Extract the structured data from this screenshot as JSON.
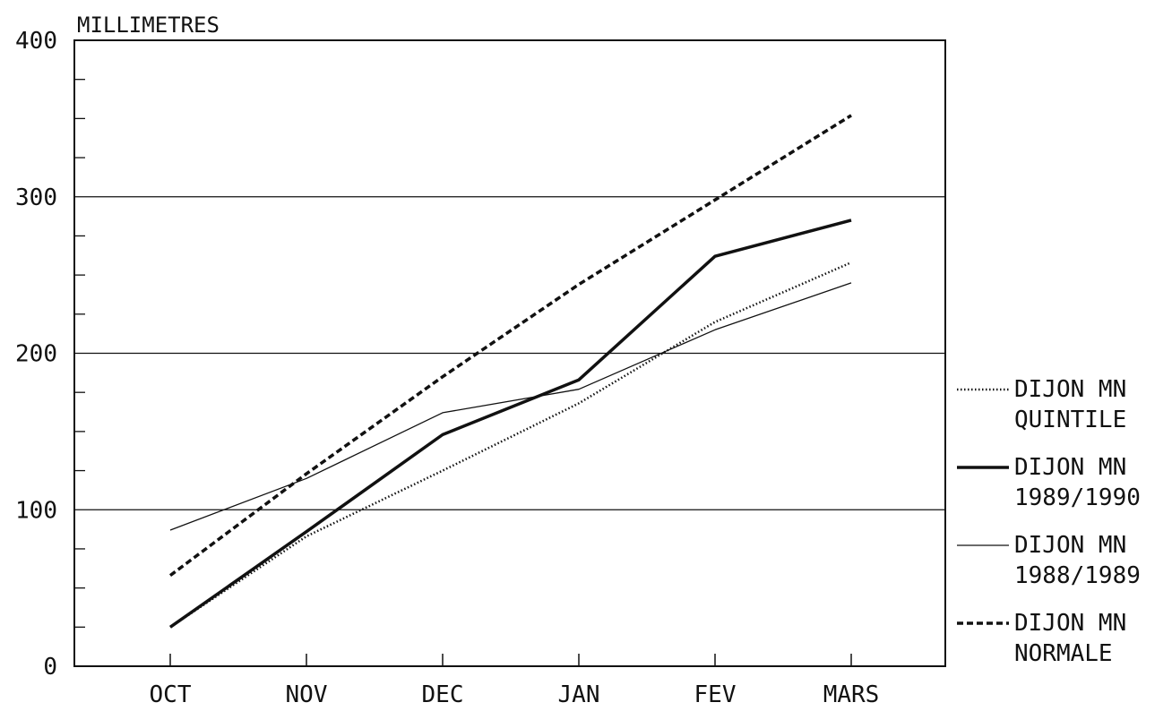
{
  "chart_data": {
    "type": "line",
    "ylabel": "MILLIMETRES",
    "categories": [
      "OCT",
      "NOV",
      "DEC",
      "JAN",
      "FEV",
      "MARS"
    ],
    "yticks": [
      "0",
      "100",
      "200",
      "300",
      "400"
    ],
    "ylim": [
      0,
      400
    ],
    "y_major_step": 100,
    "y_minor_step": 25,
    "grid": "horizontal at 100, 200, 300",
    "legend_position": "right",
    "colors": {
      "line": "#111111",
      "background": "#ffffff"
    },
    "series": [
      {
        "name_line1": "DIJON  MN",
        "name_line2": "QUINTILE",
        "style": "dotted",
        "values": [
          25,
          83,
          125,
          168,
          220,
          258
        ]
      },
      {
        "name_line1": "DIJON  MN",
        "name_line2": "1989/1990",
        "style": "thick",
        "values": [
          25,
          86,
          148,
          183,
          262,
          285
        ]
      },
      {
        "name_line1": "DIJON  MN",
        "name_line2": "1988/1989",
        "style": "thin",
        "values": [
          87,
          120,
          162,
          177,
          215,
          245
        ]
      },
      {
        "name_line1": "DIJON  MN",
        "name_line2": "NORMALE",
        "style": "dashed",
        "values": [
          58,
          123,
          185,
          244,
          298,
          352
        ]
      }
    ]
  }
}
